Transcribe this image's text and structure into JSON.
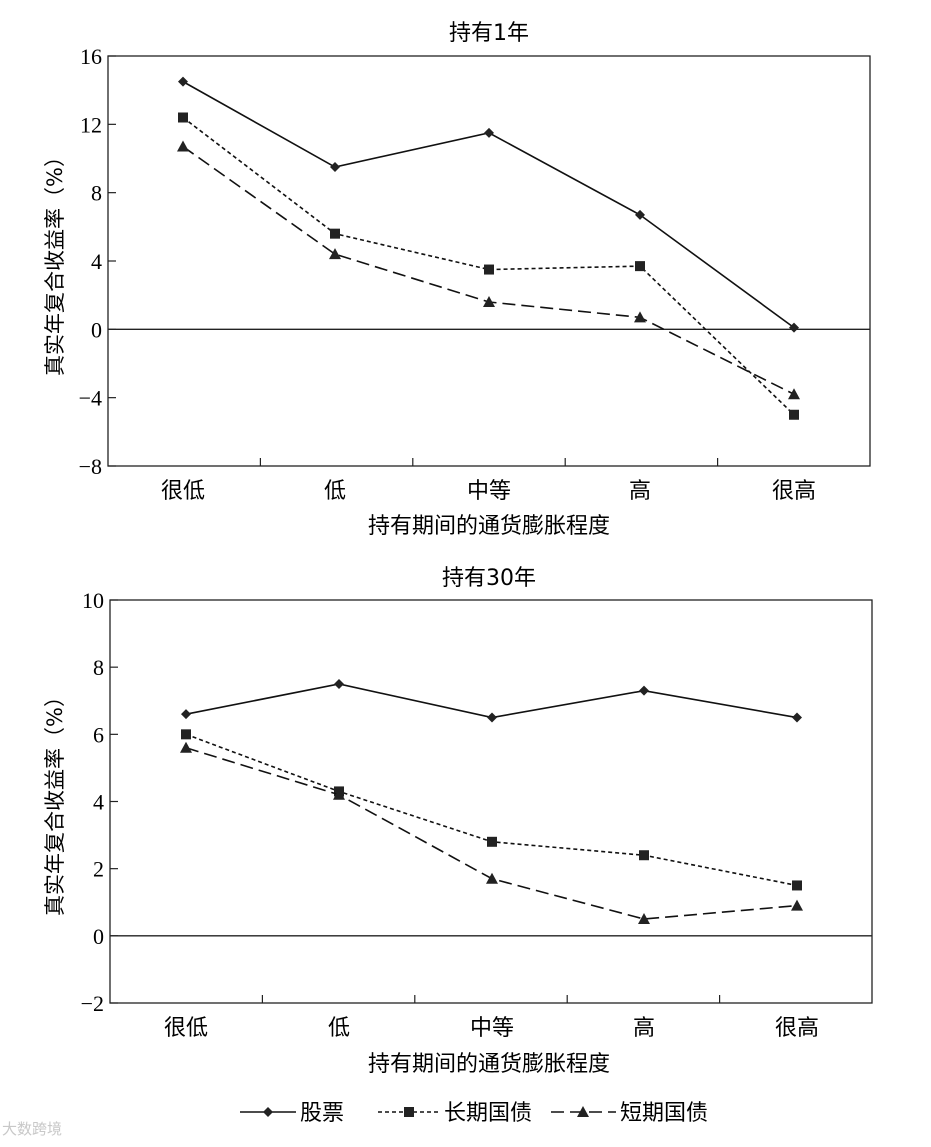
{
  "legend": {
    "items": [
      {
        "label": "股票",
        "series": "stocks"
      },
      {
        "label": "长期国债",
        "series": "long_bonds"
      },
      {
        "label": "短期国债",
        "series": "short_bills"
      }
    ]
  },
  "watermark": "大数跨境",
  "chart_data": [
    {
      "type": "line",
      "title": "持有1年",
      "xlabel": "持有期间的通货膨胀程度",
      "ylabel": "真实年复合收益率（%）",
      "categories": [
        "很低",
        "低",
        "中等",
        "高",
        "很高"
      ],
      "ylim": [
        -8,
        16
      ],
      "yticks": [
        -8,
        -4,
        0,
        4,
        8,
        12,
        16
      ],
      "ytick_labels": [
        "−8",
        "−4",
        "0",
        "4",
        "8",
        "12",
        "16"
      ],
      "series": [
        {
          "key": "stocks",
          "name": "股票",
          "values": [
            14.5,
            9.5,
            11.5,
            6.7,
            0.1
          ]
        },
        {
          "key": "long_bonds",
          "name": "长期国债",
          "values": [
            12.4,
            5.6,
            3.5,
            3.7,
            -5.0
          ]
        },
        {
          "key": "short_bills",
          "name": "短期国债",
          "values": [
            10.7,
            4.4,
            1.6,
            0.7,
            -3.8
          ]
        }
      ]
    },
    {
      "type": "line",
      "title": "持有30年",
      "xlabel": "持有期间的通货膨胀程度",
      "ylabel": "真实年复合收益率（%）",
      "categories": [
        "很低",
        "低",
        "中等",
        "高",
        "很高"
      ],
      "ylim": [
        -2,
        10
      ],
      "yticks": [
        -2,
        0,
        2,
        4,
        6,
        8,
        10
      ],
      "ytick_labels": [
        "−2",
        "0",
        "2",
        "4",
        "6",
        "8",
        "10"
      ],
      "series": [
        {
          "key": "stocks",
          "name": "股票",
          "values": [
            6.6,
            7.5,
            6.5,
            7.3,
            6.5
          ]
        },
        {
          "key": "long_bonds",
          "name": "长期国债",
          "values": [
            6.0,
            4.3,
            2.8,
            2.4,
            1.5
          ]
        },
        {
          "key": "short_bills",
          "name": "短期国债",
          "values": [
            5.6,
            4.2,
            1.7,
            0.5,
            0.9
          ]
        }
      ]
    }
  ]
}
